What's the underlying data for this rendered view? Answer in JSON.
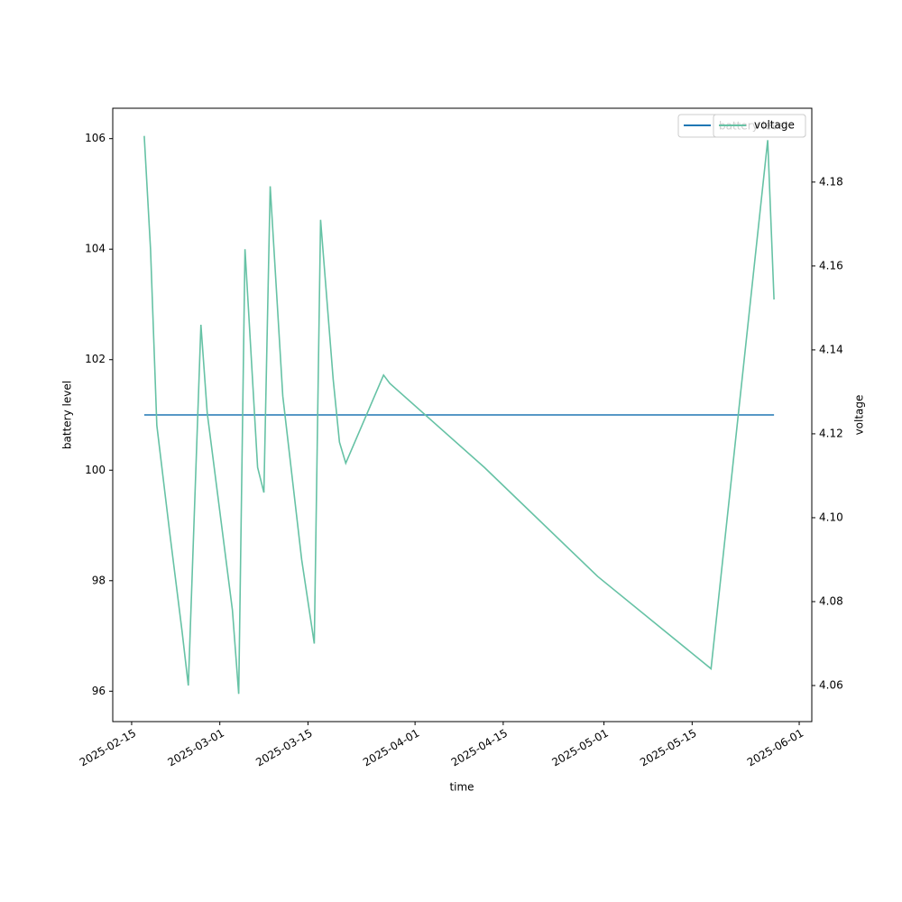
{
  "chart_data": {
    "type": "line",
    "xlabel": "time",
    "ylabel": "battery level",
    "y2label": "voltage",
    "x": [
      "2025-02-17",
      "2025-02-18",
      "2025-02-19",
      "2025-02-21",
      "2025-02-23",
      "2025-02-24",
      "2025-02-26",
      "2025-02-27",
      "2025-03-03",
      "2025-03-04",
      "2025-03-05",
      "2025-03-07",
      "2025-03-08",
      "2025-03-09",
      "2025-03-11",
      "2025-03-14",
      "2025-03-16",
      "2025-03-17",
      "2025-03-19",
      "2025-03-20",
      "2025-03-21",
      "2025-03-27",
      "2025-03-28",
      "2025-04-12",
      "2025-04-30",
      "2025-05-18",
      "2025-05-27",
      "2025-05-28"
    ],
    "series": [
      {
        "name": "battery level",
        "color": "#1f77b4",
        "axis": "y",
        "values": [
          101,
          101,
          101,
          101,
          101,
          101,
          101,
          101,
          101,
          101,
          101,
          101,
          101,
          101,
          101,
          101,
          101,
          101,
          101,
          101,
          101,
          101,
          101,
          101,
          101,
          101,
          101,
          101
        ]
      },
      {
        "name": "voltage",
        "color": "#66c2a5",
        "axis": "y2",
        "values": [
          4.191,
          4.164,
          4.122,
          4.097,
          4.073,
          4.06,
          4.146,
          4.125,
          4.078,
          4.058,
          4.164,
          4.112,
          4.106,
          4.179,
          4.129,
          4.09,
          4.07,
          4.171,
          4.133,
          4.118,
          4.113,
          4.134,
          4.132,
          4.112,
          4.086,
          4.064,
          4.19,
          4.152
        ]
      }
    ],
    "xlim": [
      "2025-02-12",
      "2025-06-03"
    ],
    "xticks": [
      "2025-02-15",
      "2025-03-01",
      "2025-03-15",
      "2025-04-01",
      "2025-04-15",
      "2025-05-01",
      "2025-05-15",
      "2025-06-01"
    ],
    "ylim": [
      95.45,
      106.55
    ],
    "yticks": [
      96,
      98,
      100,
      102,
      104,
      106
    ],
    "y2lim": [
      4.0514,
      4.1976
    ],
    "y2ticks": [
      4.06,
      4.08,
      {
        "value": 4.1,
        "label": "4.10"
      },
      4.12,
      4.14,
      4.16,
      4.18
    ],
    "grid": false
  }
}
